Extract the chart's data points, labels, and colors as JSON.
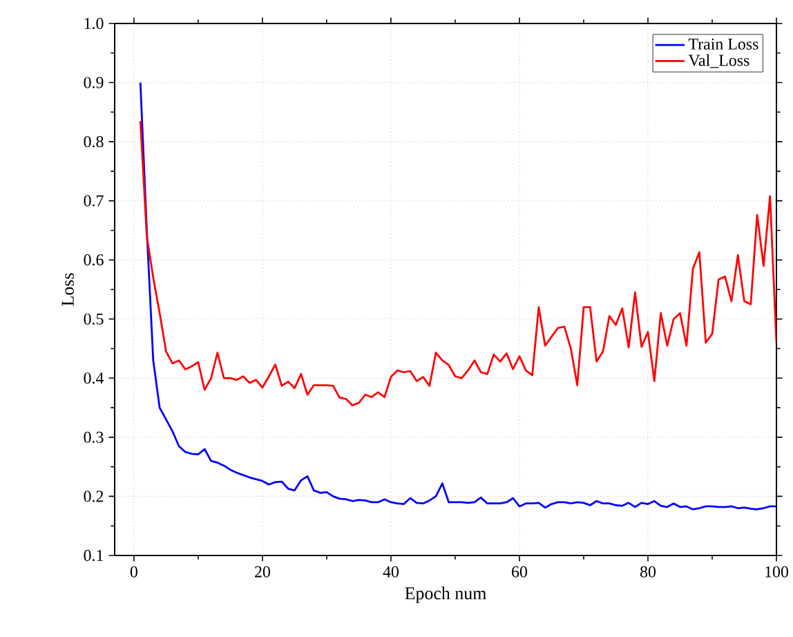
{
  "chart_data": {
    "type": "line",
    "xlabel": "Epoch num",
    "ylabel": "Loss",
    "x": [
      1,
      2,
      3,
      4,
      5,
      6,
      7,
      8,
      9,
      10,
      11,
      12,
      13,
      14,
      15,
      16,
      17,
      18,
      19,
      20,
      21,
      22,
      23,
      24,
      25,
      26,
      27,
      28,
      29,
      30,
      31,
      32,
      33,
      34,
      35,
      36,
      37,
      38,
      39,
      40,
      41,
      42,
      43,
      44,
      45,
      46,
      47,
      48,
      49,
      50,
      51,
      52,
      53,
      54,
      55,
      56,
      57,
      58,
      59,
      60,
      61,
      62,
      63,
      64,
      65,
      66,
      67,
      68,
      69,
      70,
      71,
      72,
      73,
      74,
      75,
      76,
      77,
      78,
      79,
      80,
      81,
      82,
      83,
      84,
      85,
      86,
      87,
      88,
      89,
      90,
      91,
      92,
      93,
      94,
      95,
      96,
      97,
      98,
      99,
      100
    ],
    "series": [
      {
        "name": "Train Loss",
        "color": "#0000ff",
        "values": [
          0.9,
          0.65,
          0.43,
          0.35,
          0.33,
          0.31,
          0.285,
          0.275,
          0.272,
          0.271,
          0.28,
          0.26,
          0.257,
          0.252,
          0.245,
          0.24,
          0.236,
          0.232,
          0.229,
          0.226,
          0.22,
          0.224,
          0.225,
          0.213,
          0.21,
          0.227,
          0.234,
          0.21,
          0.206,
          0.207,
          0.2,
          0.196,
          0.195,
          0.192,
          0.194,
          0.193,
          0.19,
          0.19,
          0.195,
          0.19,
          0.188,
          0.187,
          0.197,
          0.189,
          0.188,
          0.193,
          0.2,
          0.222,
          0.19,
          0.19,
          0.19,
          0.189,
          0.19,
          0.198,
          0.188,
          0.188,
          0.188,
          0.19,
          0.197,
          0.183,
          0.188,
          0.188,
          0.189,
          0.181,
          0.187,
          0.19,
          0.19,
          0.188,
          0.19,
          0.189,
          0.185,
          0.192,
          0.188,
          0.188,
          0.185,
          0.184,
          0.189,
          0.182,
          0.189,
          0.187,
          0.192,
          0.184,
          0.182,
          0.188,
          0.182,
          0.183,
          0.178,
          0.18,
          0.183,
          0.183,
          0.182,
          0.182,
          0.183,
          0.18,
          0.181,
          0.179,
          0.178,
          0.18,
          0.183,
          0.183
        ]
      },
      {
        "name": "Val_Loss",
        "color": "#ff0000",
        "values": [
          0.835,
          0.64,
          0.57,
          0.51,
          0.445,
          0.425,
          0.43,
          0.415,
          0.42,
          0.427,
          0.38,
          0.4,
          0.443,
          0.4,
          0.4,
          0.397,
          0.403,
          0.392,
          0.397,
          0.384,
          0.403,
          0.423,
          0.387,
          0.394,
          0.383,
          0.407,
          0.372,
          0.388,
          0.388,
          0.388,
          0.387,
          0.367,
          0.365,
          0.354,
          0.358,
          0.372,
          0.368,
          0.376,
          0.368,
          0.402,
          0.413,
          0.41,
          0.412,
          0.395,
          0.402,
          0.387,
          0.443,
          0.43,
          0.422,
          0.403,
          0.4,
          0.413,
          0.43,
          0.41,
          0.407,
          0.44,
          0.428,
          0.442,
          0.415,
          0.437,
          0.413,
          0.405,
          0.52,
          0.455,
          0.47,
          0.485,
          0.487,
          0.45,
          0.388,
          0.52,
          0.52,
          0.428,
          0.445,
          0.505,
          0.49,
          0.518,
          0.452,
          0.545,
          0.453,
          0.478,
          0.395,
          0.51,
          0.455,
          0.5,
          0.51,
          0.455,
          0.585,
          0.613,
          0.46,
          0.475,
          0.567,
          0.572,
          0.53,
          0.608,
          0.53,
          0.525,
          0.676,
          0.59,
          0.708,
          0.46
        ]
      }
    ],
    "xlim": [
      -3,
      100
    ],
    "ylim": [
      0.1,
      1.0
    ],
    "xticks": [
      0,
      20,
      40,
      60,
      80,
      100
    ],
    "yticks": [
      0.1,
      0.2,
      0.3,
      0.4,
      0.5,
      0.6,
      0.7,
      0.8,
      0.9,
      {
        "value": 1.0,
        "label": "1.0"
      }
    ],
    "grid": true,
    "legend": "top right",
    "marker": "none",
    "line_style": "solid"
  }
}
